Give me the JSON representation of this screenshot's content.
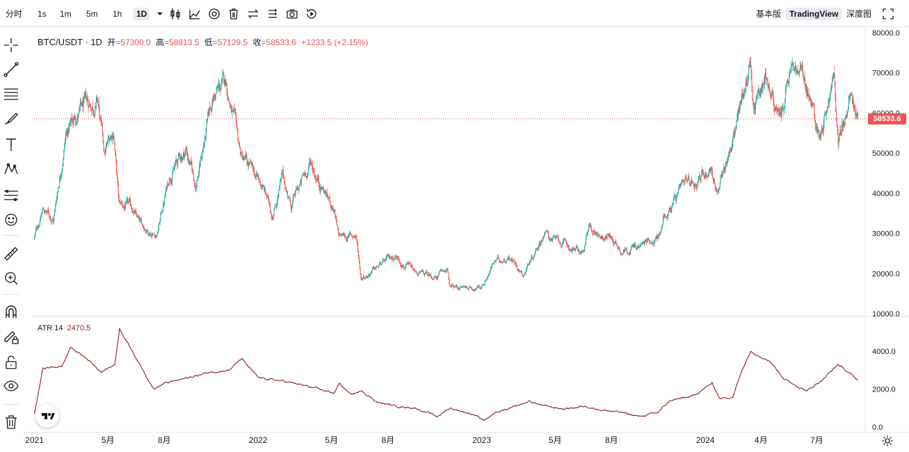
{
  "toolbar": {
    "timeframes": [
      {
        "label": "分时",
        "active": false
      },
      {
        "label": "1s",
        "active": false
      },
      {
        "label": "1m",
        "active": false
      },
      {
        "label": "5m",
        "active": false
      },
      {
        "label": "1h",
        "active": false
      },
      {
        "label": "1D",
        "active": true
      }
    ],
    "tools": [
      "chevron-down-icon",
      "candlestick-icon",
      "indicator-icon",
      "settings-icon",
      "trash-icon",
      "swap-icon",
      "list-icon",
      "camera-icon",
      "replay-icon"
    ],
    "view_modes": [
      {
        "label": "基本版",
        "active": false
      },
      {
        "label": "TradingView",
        "active": true
      },
      {
        "label": "深度图",
        "active": false
      }
    ],
    "fullscreen_icon": "fullscreen-icon"
  },
  "sidebar": {
    "tools": [
      "crosshair-icon",
      "trendline-icon",
      "fib-icon",
      "brush-icon",
      "text-icon",
      "pattern-icon",
      "prediction-icon",
      "emoji-icon",
      "ruler-icon",
      "zoom-in-icon",
      "magnet-icon",
      "lock-drawing-icon",
      "unlock-icon",
      "eye-icon",
      "trash-icon"
    ]
  },
  "legend": {
    "symbol": "BTC/USDT · 1D",
    "open_label": "开",
    "open": "=57300.0",
    "high_label": "高",
    "high": "=58813.5",
    "low_label": "低",
    "low": "=57129.5",
    "close_label": "收",
    "close": "=58533.6",
    "change": "+1233.5 (+2.15%)"
  },
  "atr": {
    "label": "ATR 14",
    "value": "2470.5"
  },
  "last_price": "58533.6",
  "colors": {
    "up": "#26a69a",
    "down": "#ef5350",
    "atr_line": "#8b1f1f",
    "price_line": "#ef5350"
  },
  "chart_data": {
    "type": "candlestick",
    "price_axis": {
      "ticks": [
        "80000.0",
        "70000.0",
        "60000.0",
        "50000.0",
        "40000.0",
        "30000.0",
        "20000.0",
        "10000.0"
      ],
      "range": [
        10000,
        80000
      ]
    },
    "atr_axis": {
      "ticks": [
        "4000.0",
        "2000.0",
        "0.0"
      ],
      "range": [
        0,
        4000
      ]
    },
    "time_axis": {
      "ticks": [
        "2021",
        "5月",
        "8月",
        "2022",
        "5月",
        "8月",
        "2023",
        "5月",
        "8月",
        "2024",
        "4月",
        "7月"
      ]
    },
    "close_path": [
      [
        "2021-01-01",
        29000
      ],
      [
        "2021-01-15",
        36000
      ],
      [
        "2021-02-01",
        33500
      ],
      [
        "2021-02-21",
        55000
      ],
      [
        "2021-03-13",
        60000
      ],
      [
        "2021-04-14",
        63000
      ],
      [
        "2021-04-25",
        49000
      ],
      [
        "2021-05-10",
        56000
      ],
      [
        "2021-05-19",
        37000
      ],
      [
        "2021-06-10",
        36000
      ],
      [
        "2021-06-22",
        32000
      ],
      [
        "2021-07-20",
        30000
      ],
      [
        "2021-08-10",
        45000
      ],
      [
        "2021-09-06",
        51000
      ],
      [
        "2021-09-21",
        42000
      ],
      [
        "2021-10-20",
        64000
      ],
      [
        "2021-11-10",
        67500
      ],
      [
        "2021-12-04",
        49000
      ],
      [
        "2022-01-10",
        41000
      ],
      [
        "2022-01-24",
        35000
      ],
      [
        "2022-02-10",
        44000
      ],
      [
        "2022-02-24",
        37000
      ],
      [
        "2022-03-28",
        47500
      ],
      [
        "2022-05-05",
        36000
      ],
      [
        "2022-05-12",
        29000
      ],
      [
        "2022-06-10",
        29500
      ],
      [
        "2022-06-18",
        19000
      ],
      [
        "2022-07-10",
        21000
      ],
      [
        "2022-08-13",
        24500
      ],
      [
        "2022-09-15",
        20000
      ],
      [
        "2022-10-20",
        19100
      ],
      [
        "2022-11-05",
        21000
      ],
      [
        "2022-11-10",
        16500
      ],
      [
        "2022-12-31",
        16600
      ],
      [
        "2023-01-20",
        22500
      ],
      [
        "2023-02-15",
        24500
      ],
      [
        "2023-03-10",
        20000
      ],
      [
        "2023-04-12",
        30200
      ],
      [
        "2023-05-10",
        27500
      ],
      [
        "2023-06-15",
        25000
      ],
      [
        "2023-06-25",
        30500
      ],
      [
        "2023-07-30",
        29300
      ],
      [
        "2023-08-17",
        26000
      ],
      [
        "2023-09-20",
        27000
      ],
      [
        "2023-10-20",
        30000
      ],
      [
        "2023-10-25",
        34500
      ],
      [
        "2023-12-05",
        42000
      ],
      [
        "2024-01-10",
        46500
      ],
      [
        "2024-01-22",
        39500
      ],
      [
        "2024-02-28",
        62000
      ],
      [
        "2024-03-14",
        73000
      ],
      [
        "2024-03-20",
        62500
      ],
      [
        "2024-04-10",
        70000
      ],
      [
        "2024-05-01",
        57000
      ],
      [
        "2024-05-21",
        71000
      ],
      [
        "2024-06-10",
        68000
      ],
      [
        "2024-07-05",
        54500
      ],
      [
        "2024-07-29",
        69000
      ],
      [
        "2024-08-05",
        52000
      ],
      [
        "2024-08-24",
        64000
      ],
      [
        "2024-09-06",
        58500
      ]
    ],
    "atr_path": [
      [
        "2021-01-01",
        700
      ],
      [
        "2021-01-15",
        3100
      ],
      [
        "2021-02-15",
        3200
      ],
      [
        "2021-03-01",
        4200
      ],
      [
        "2021-04-01",
        3500
      ],
      [
        "2021-04-20",
        2900
      ],
      [
        "2021-05-12",
        3300
      ],
      [
        "2021-05-20",
        5200
      ],
      [
        "2021-06-15",
        3700
      ],
      [
        "2021-07-15",
        2000
      ],
      [
        "2021-08-01",
        2300
      ],
      [
        "2021-09-10",
        2600
      ],
      [
        "2021-10-15",
        2900
      ],
      [
        "2021-11-15",
        3000
      ],
      [
        "2021-12-05",
        3600
      ],
      [
        "2022-01-01",
        2600
      ],
      [
        "2022-02-15",
        2400
      ],
      [
        "2022-03-15",
        2200
      ],
      [
        "2022-04-15",
        1950
      ],
      [
        "2022-05-05",
        1800
      ],
      [
        "2022-05-14",
        2300
      ],
      [
        "2022-06-01",
        1700
      ],
      [
        "2022-06-20",
        1900
      ],
      [
        "2022-07-15",
        1300
      ],
      [
        "2022-08-15",
        1100
      ],
      [
        "2022-09-15",
        1000
      ],
      [
        "2022-10-20",
        550
      ],
      [
        "2022-11-10",
        1000
      ],
      [
        "2022-12-20",
        650
      ],
      [
        "2023-01-05",
        380
      ],
      [
        "2023-01-25",
        750
      ],
      [
        "2023-02-15",
        950
      ],
      [
        "2023-03-20",
        1350
      ],
      [
        "2023-04-15",
        1100
      ],
      [
        "2023-05-15",
        950
      ],
      [
        "2023-06-20",
        1100
      ],
      [
        "2023-07-15",
        900
      ],
      [
        "2023-08-20",
        750
      ],
      [
        "2023-09-15",
        550
      ],
      [
        "2023-10-15",
        750
      ],
      [
        "2023-11-05",
        1400
      ],
      [
        "2023-12-10",
        1600
      ],
      [
        "2024-01-12",
        2300
      ],
      [
        "2024-01-25",
        1500
      ],
      [
        "2024-02-15",
        1600
      ],
      [
        "2024-03-01",
        3000
      ],
      [
        "2024-03-15",
        4000
      ],
      [
        "2024-04-15",
        3500
      ],
      [
        "2024-05-10",
        2500
      ],
      [
        "2024-06-15",
        1900
      ],
      [
        "2024-07-10",
        2500
      ],
      [
        "2024-08-05",
        3300
      ],
      [
        "2024-09-06",
        2470
      ]
    ]
  }
}
